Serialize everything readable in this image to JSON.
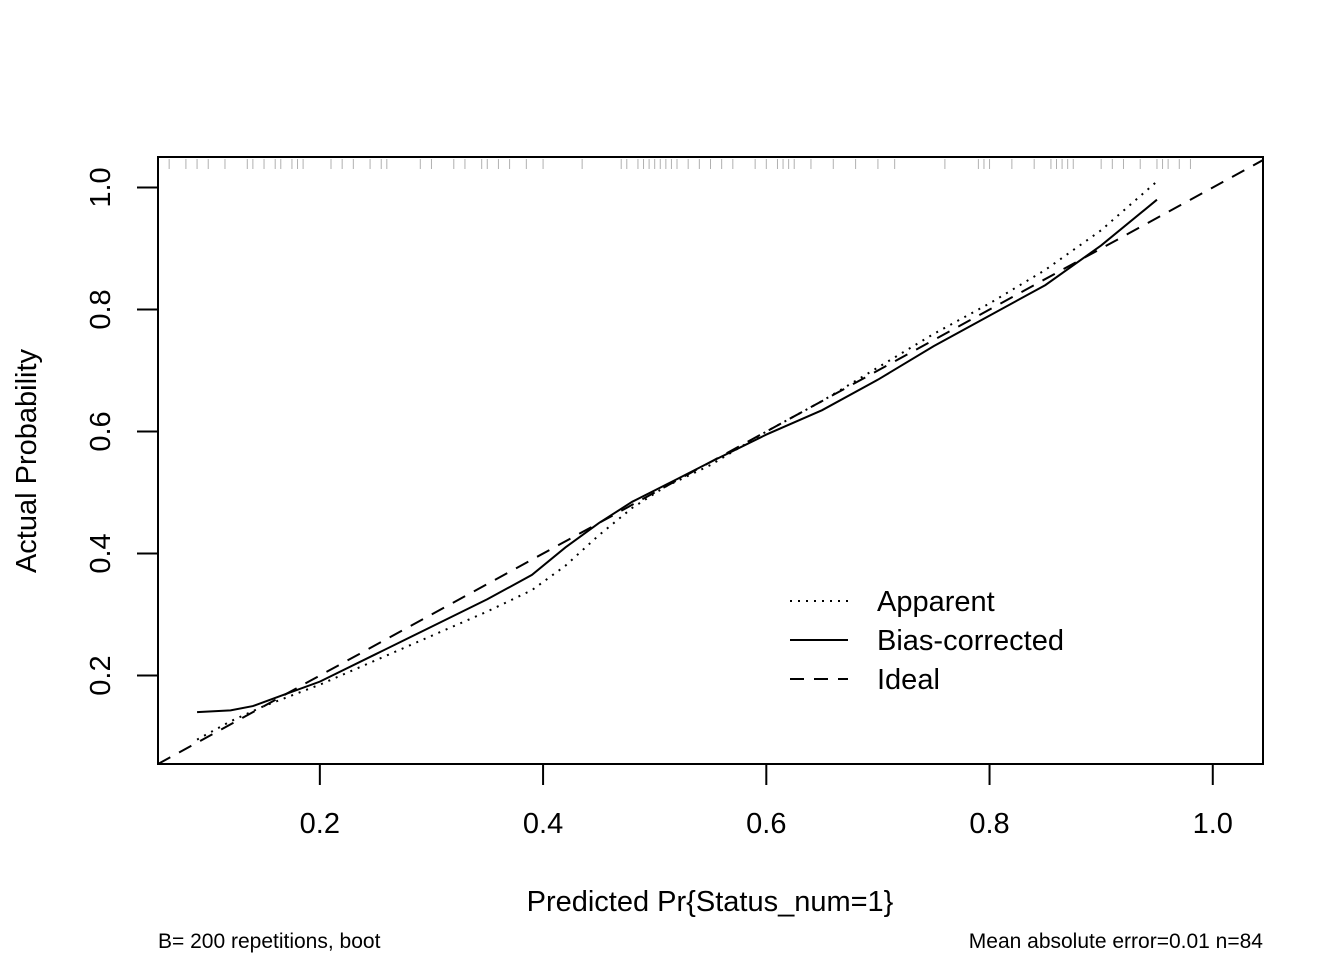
{
  "chart_data": {
    "type": "line",
    "xlabel": "Predicted Pr{Status_num=1}",
    "ylabel": "Actual Probability",
    "xlim": [
      0.055,
      1.045
    ],
    "ylim": [
      0.055,
      1.05
    ],
    "x_ticks": [
      0.2,
      0.4,
      0.6,
      0.8,
      1.0
    ],
    "x_tick_labels": [
      "0.2",
      "0.4",
      "0.6",
      "0.8",
      "1.0"
    ],
    "y_ticks": [
      0.2,
      0.4,
      0.6,
      0.8,
      1.0
    ],
    "y_tick_labels": [
      "0.2",
      "0.4",
      "0.6",
      "0.8",
      "1.0"
    ],
    "grid": false,
    "legend_position": "bottom-right",
    "series": [
      {
        "name": "Apparent",
        "style": "dotted",
        "color": "#000000",
        "x": [
          0.09,
          0.12,
          0.15,
          0.2,
          0.25,
          0.3,
          0.35,
          0.39,
          0.42,
          0.45,
          0.48,
          0.51,
          0.55,
          0.6,
          0.65,
          0.7,
          0.75,
          0.8,
          0.85,
          0.9,
          0.95
        ],
        "y": [
          0.095,
          0.125,
          0.15,
          0.185,
          0.225,
          0.265,
          0.305,
          0.34,
          0.38,
          0.43,
          0.475,
          0.51,
          0.545,
          0.6,
          0.65,
          0.705,
          0.76,
          0.81,
          0.865,
          0.93,
          1.01
        ]
      },
      {
        "name": "Bias-corrected",
        "style": "solid",
        "color": "#000000",
        "x": [
          0.09,
          0.12,
          0.14,
          0.17,
          0.2,
          0.25,
          0.3,
          0.35,
          0.39,
          0.42,
          0.45,
          0.48,
          0.52,
          0.55,
          0.6,
          0.65,
          0.7,
          0.75,
          0.8,
          0.85,
          0.9,
          0.95
        ],
        "y": [
          0.14,
          0.143,
          0.15,
          0.17,
          0.19,
          0.235,
          0.28,
          0.325,
          0.365,
          0.41,
          0.45,
          0.485,
          0.522,
          0.55,
          0.595,
          0.635,
          0.685,
          0.74,
          0.79,
          0.84,
          0.905,
          0.98
        ]
      },
      {
        "name": "Ideal",
        "style": "dashed",
        "color": "#000000",
        "x": [
          0.055,
          1.045
        ],
        "y": [
          0.055,
          1.045
        ]
      }
    ],
    "rug_x": [
      0.065,
      0.08,
      0.09,
      0.1,
      0.115,
      0.135,
      0.14,
      0.15,
      0.16,
      0.165,
      0.175,
      0.18,
      0.185,
      0.21,
      0.22,
      0.23,
      0.245,
      0.255,
      0.26,
      0.29,
      0.3,
      0.32,
      0.33,
      0.345,
      0.35,
      0.36,
      0.37,
      0.385,
      0.4,
      0.435,
      0.47,
      0.475,
      0.485,
      0.49,
      0.495,
      0.5,
      0.505,
      0.51,
      0.515,
      0.52,
      0.53,
      0.54,
      0.55,
      0.56,
      0.57,
      0.59,
      0.6,
      0.61,
      0.615,
      0.62,
      0.625,
      0.64,
      0.66,
      0.68,
      0.7,
      0.715,
      0.76,
      0.79,
      0.795,
      0.8,
      0.82,
      0.84,
      0.855,
      0.86,
      0.865,
      0.87,
      0.875,
      0.9,
      0.91,
      0.92,
      0.935,
      0.95,
      0.955,
      0.96,
      0.97,
      0.98
    ]
  },
  "legend": {
    "items": [
      {
        "label": "Apparent",
        "style": "dotted"
      },
      {
        "label": "Bias-corrected",
        "style": "solid"
      },
      {
        "label": "Ideal",
        "style": "dashed"
      }
    ]
  },
  "footer": {
    "left": "B= 200 repetitions, boot",
    "right": "Mean absolute error=0.01 n=84"
  }
}
